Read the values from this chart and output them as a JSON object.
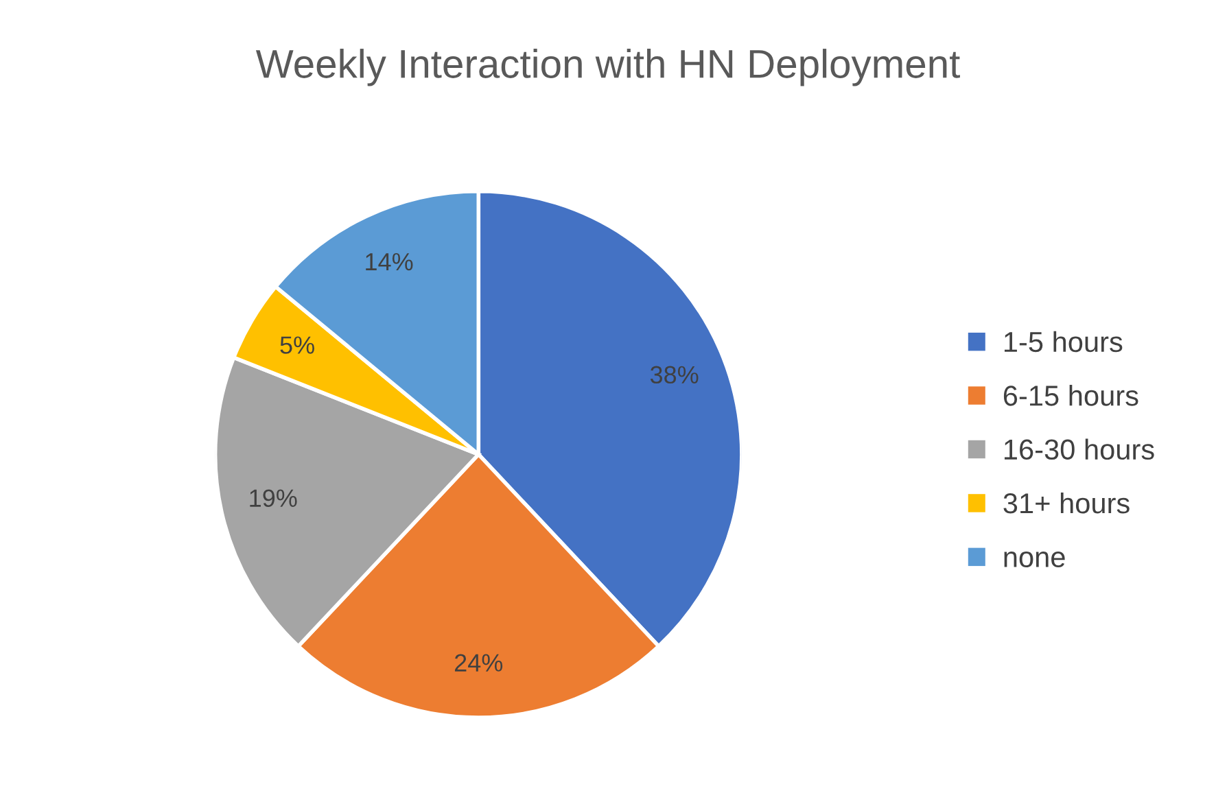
{
  "chart_data": {
    "type": "pie",
    "title": "Weekly Interaction with HN Deployment",
    "categories": [
      "1-5 hours",
      "6-15 hours",
      "16-30 hours",
      "31+ hours",
      "none"
    ],
    "values": [
      38,
      24,
      19,
      5,
      14
    ],
    "colors": [
      "#4472c4",
      "#ed7d31",
      "#a5a5a5",
      "#ffc000",
      "#5b9bd5"
    ],
    "value_labels": [
      "38%",
      "24%",
      "19%",
      "5%",
      "14%"
    ],
    "legend": "right"
  }
}
